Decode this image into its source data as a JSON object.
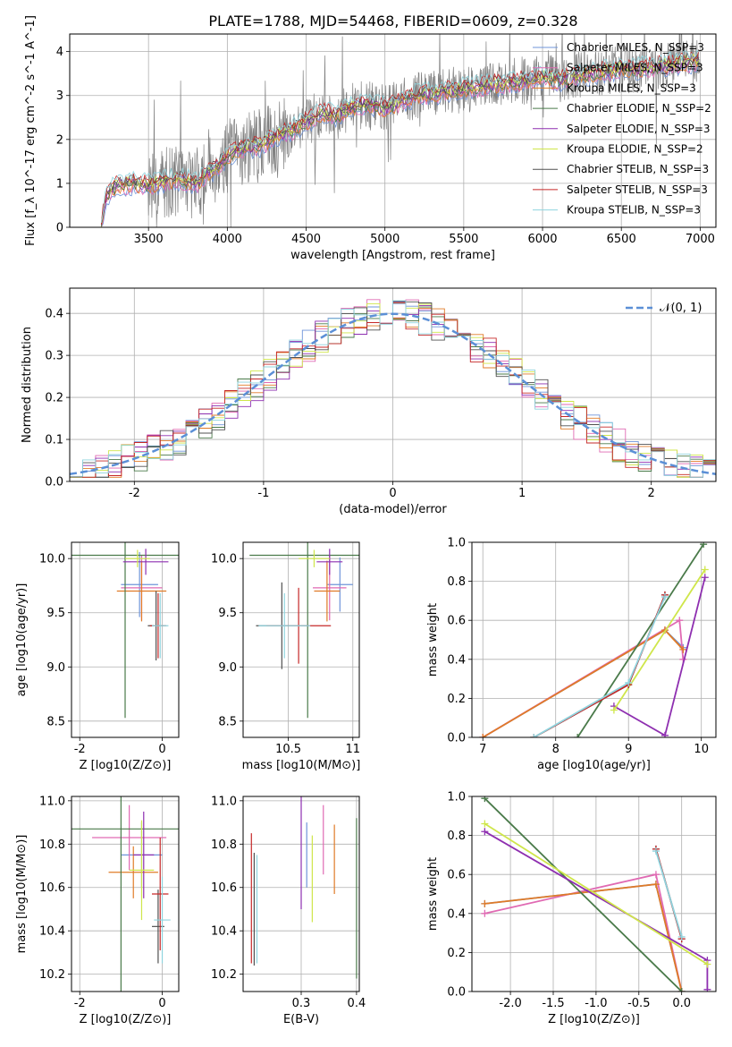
{
  "figure_title": "PLATE=1788, MJD=54468, FIBERID=0609, z=0.328",
  "model_colors": [
    "#6f94d9",
    "#e06ab3",
    "#e07b27",
    "#4a7a4a",
    "#8e2fb0",
    "#cfe64a",
    "#505050",
    "#c62828",
    "#8fd4de"
  ],
  "spectrum_color": "#808080",
  "chart_data": [
    {
      "type": "line",
      "xlabel": "wavelength [Angstrom, rest frame]",
      "ylabel": "Flux [f_λ 10^-17 erg cm^-2 s^-1 A^-1]",
      "xlim": [
        3000,
        7100
      ],
      "ylim": [
        0,
        4.4
      ],
      "xticks": [
        3500,
        4000,
        4500,
        5000,
        5500,
        6000,
        6500,
        7000
      ],
      "yticks": [
        0,
        1,
        2,
        3,
        4
      ],
      "legend_placement": "top-right",
      "legend": [
        "Chabrier MILES, N_SSP=3",
        "Salpeter MILES, N_SSP=3",
        "Kroupa MILES, N_SSP=3",
        "Chabrier ELODIE, N_SSP=2",
        "Salpeter ELODIE, N_SSP=3",
        "Kroupa ELODIE, N_SSP=2",
        "Chabrier STELIB, N_SSP=3",
        "Salpeter STELIB, N_SSP=3",
        "Kroupa STELIB, N_SSP=3"
      ],
      "continuum": {
        "x": [
          3200,
          3230,
          3260,
          3300,
          3400,
          3500,
          3600,
          3700,
          3800,
          3900,
          4000,
          4100,
          4200,
          4300,
          4400,
          4500,
          4600,
          4700,
          4800,
          4900,
          5000,
          5100,
          5200,
          5300,
          5400,
          5500,
          5600,
          5700,
          5800,
          5900,
          6000,
          6100,
          6200,
          6300,
          6400,
          6500,
          6600,
          6700,
          6800,
          6900,
          7000
        ],
        "y": [
          0.0,
          0.7,
          0.85,
          0.95,
          1.0,
          0.95,
          1.05,
          1.1,
          1.0,
          1.3,
          1.6,
          1.8,
          1.85,
          2.05,
          2.2,
          2.4,
          2.6,
          2.55,
          2.75,
          2.8,
          2.7,
          2.85,
          3.0,
          3.05,
          3.1,
          3.15,
          3.2,
          3.25,
          3.3,
          3.35,
          3.4,
          3.35,
          3.45,
          3.5,
          3.55,
          3.6,
          3.6,
          3.65,
          3.7,
          3.75,
          3.8
        ]
      }
    },
    {
      "type": "line",
      "xlabel": "(data-model)/error",
      "ylabel": "Normed distribution",
      "xlim": [
        -2.5,
        2.5
      ],
      "ylim": [
        0,
        0.46
      ],
      "xticks": [
        -2,
        -1,
        0,
        1,
        2
      ],
      "yticks": [
        0.0,
        0.1,
        0.2,
        0.3,
        0.4
      ],
      "legend_placement": "top-right",
      "legend": [
        "𝒩(0, 1)"
      ],
      "reference": "N(0,1)",
      "bin_width": 0.1
    },
    {
      "type": "scatter",
      "xlabel": "Z [log10(Z/Z⊙)]",
      "ylabel": "age  [log10(age/yr)]",
      "xlim": [
        -2.2,
        0.4
      ],
      "ylim": [
        8.35,
        10.15
      ],
      "xticks": [
        -2,
        0
      ],
      "yticks": [
        8.5,
        9.0,
        9.5,
        10.0
      ],
      "points": [
        {
          "series": 0,
          "x": -0.55,
          "y": 9.76,
          "xerr": 0.45,
          "yerr": 0.3
        },
        {
          "series": 1,
          "x": -0.5,
          "y": 9.73,
          "xerr": 0.5,
          "yerr": 0.3
        },
        {
          "series": 2,
          "x": -0.5,
          "y": 9.7,
          "xerr": 0.6,
          "yerr": 0.28
        },
        {
          "series": 3,
          "x": -0.9,
          "y": 10.03,
          "xerr": 1.9,
          "yerr": 1.5
        },
        {
          "series": 4,
          "x": -0.4,
          "y": 9.97,
          "xerr": 0.55,
          "yerr": 0.12
        },
        {
          "series": 5,
          "x": -0.6,
          "y": 10.0,
          "xerr": 0.3,
          "yerr": 0.08
        },
        {
          "series": 6,
          "x": -0.15,
          "y": 9.38,
          "xerr": 0.2,
          "yerr": 0.32
        },
        {
          "series": 7,
          "x": -0.1,
          "y": 9.38,
          "xerr": 0.2,
          "yerr": 0.3
        },
        {
          "series": 8,
          "x": -0.05,
          "y": 9.38,
          "xerr": 0.2,
          "yerr": 0.3
        }
      ]
    },
    {
      "type": "scatter",
      "xlabel": "mass [log10(M/M⊙)]",
      "ylabel": "",
      "xlim": [
        10.15,
        11.05
      ],
      "ylim": [
        8.35,
        10.15
      ],
      "xticks": [
        10.5,
        11.0
      ],
      "yticks": [
        8.5,
        9.0,
        9.5,
        10.0
      ],
      "points": [
        {
          "series": 0,
          "x": 10.9,
          "y": 9.76,
          "xerr": 0.1,
          "yerr": 0.25
        },
        {
          "series": 1,
          "x": 10.82,
          "y": 9.73,
          "xerr": 0.13,
          "yerr": 0.3
        },
        {
          "series": 2,
          "x": 10.8,
          "y": 9.7,
          "xerr": 0.1,
          "yerr": 0.28
        },
        {
          "series": 3,
          "x": 10.65,
          "y": 10.03,
          "xerr": 0.45,
          "yerr": 1.5
        },
        {
          "series": 4,
          "x": 10.82,
          "y": 9.97,
          "xerr": 0.1,
          "yerr": 0.12
        },
        {
          "series": 5,
          "x": 10.7,
          "y": 10.0,
          "xerr": 0.12,
          "yerr": 0.08
        },
        {
          "series": 6,
          "x": 10.45,
          "y": 9.38,
          "xerr": 0.2,
          "yerr": 0.4
        },
        {
          "series": 7,
          "x": 10.58,
          "y": 9.38,
          "xerr": 0.25,
          "yerr": 0.35
        },
        {
          "series": 8,
          "x": 10.47,
          "y": 9.38,
          "xerr": 0.2,
          "yerr": 0.3
        }
      ]
    },
    {
      "type": "line",
      "xlabel": "age  [log10(age/yr)]",
      "ylabel": "mass weight",
      "xlim": [
        6.85,
        10.2
      ],
      "ylim": [
        0,
        1
      ],
      "xticks": [
        7,
        8,
        9,
        10
      ],
      "yticks": [
        0.0,
        0.2,
        0.4,
        0.6,
        0.8,
        1.0
      ],
      "series": [
        {
          "x": [
            7.0,
            9.5,
            9.75
          ],
          "y": [
            0.0,
            0.55,
            0.46
          ]
        },
        {
          "x": [
            7.0,
            9.7,
            9.75
          ],
          "y": [
            0.0,
            0.6,
            0.4
          ]
        },
        {
          "x": [
            7.0,
            9.5,
            9.75
          ],
          "y": [
            0.0,
            0.55,
            0.45
          ]
        },
        {
          "x": [
            8.3,
            10.03
          ],
          "y": [
            0.0,
            0.99
          ]
        },
        {
          "x": [
            8.8,
            9.5,
            10.05
          ],
          "y": [
            0.16,
            0.01,
            0.82
          ]
        },
        {
          "x": [
            8.8,
            10.05
          ],
          "y": [
            0.14,
            0.86
          ]
        },
        {
          "x": [
            7.7,
            9.0,
            9.5
          ],
          "y": [
            0.0,
            0.27,
            0.73
          ]
        },
        {
          "x": [
            7.7,
            9.0,
            9.5
          ],
          "y": [
            0.0,
            0.27,
            0.73
          ]
        },
        {
          "x": [
            7.7,
            9.0,
            9.5
          ],
          "y": [
            0.0,
            0.28,
            0.72
          ]
        }
      ]
    },
    {
      "type": "scatter",
      "xlabel": "Z [log10(Z/Z⊙)]",
      "ylabel": "mass [log10(M/M⊙)]",
      "xlim": [
        -2.2,
        0.4
      ],
      "ylim": [
        10.12,
        11.02
      ],
      "xticks": [
        -2,
        0
      ],
      "yticks": [
        10.2,
        10.4,
        10.6,
        10.8,
        11.0
      ],
      "points": [
        {
          "series": 0,
          "x": -0.5,
          "y": 10.75,
          "xerr": 0.5,
          "yerr": 0.15
        },
        {
          "series": 1,
          "x": -0.8,
          "y": 10.83,
          "xerr": 0.9,
          "yerr": 0.15
        },
        {
          "series": 2,
          "x": -0.7,
          "y": 10.67,
          "xerr": 0.6,
          "yerr": 0.12
        },
        {
          "series": 3,
          "x": -1.0,
          "y": 10.87,
          "xerr": 1.7,
          "yerr": 0.75
        },
        {
          "series": 4,
          "x": -0.45,
          "y": 10.75,
          "xerr": 0.25,
          "yerr": 0.2
        },
        {
          "series": 5,
          "x": -0.5,
          "y": 10.68,
          "xerr": 0.3,
          "yerr": 0.23
        },
        {
          "series": 6,
          "x": -0.1,
          "y": 10.42,
          "xerr": 0.15,
          "yerr": 0.17
        },
        {
          "series": 7,
          "x": -0.05,
          "y": 10.57,
          "xerr": 0.2,
          "yerr": 0.26
        },
        {
          "series": 8,
          "x": 0.0,
          "y": 10.45,
          "xerr": 0.2,
          "yerr": 0.2
        }
      ]
    },
    {
      "type": "scatter",
      "xlabel": "E(B-V)",
      "ylabel": "",
      "xlim": [
        0.195,
        0.405
      ],
      "ylim": [
        10.12,
        11.02
      ],
      "xticks": [
        0.3,
        0.4
      ],
      "yticks": [
        10.2,
        10.4,
        10.6,
        10.8,
        11.0
      ],
      "points": [
        {
          "series": 0,
          "x": 0.31,
          "y": 10.75,
          "yerr": 0.15
        },
        {
          "series": 1,
          "x": 0.34,
          "y": 10.82,
          "yerr": 0.16
        },
        {
          "series": 2,
          "x": 0.36,
          "y": 10.73,
          "yerr": 0.16
        },
        {
          "series": 3,
          "x": 0.4,
          "y": 10.55,
          "yerr": 0.37
        },
        {
          "series": 4,
          "x": 0.3,
          "y": 10.78,
          "yerr": 0.28
        },
        {
          "series": 5,
          "x": 0.32,
          "y": 10.64,
          "yerr": 0.2
        },
        {
          "series": 6,
          "x": 0.215,
          "y": 10.5,
          "yerr": 0.26
        },
        {
          "series": 7,
          "x": 0.21,
          "y": 10.55,
          "yerr": 0.3
        },
        {
          "series": 8,
          "x": 0.22,
          "y": 10.5,
          "yerr": 0.25
        }
      ]
    },
    {
      "type": "line",
      "xlabel": "Z [log10(Z/Z⊙)]",
      "ylabel": "mass weight",
      "xlim": [
        -2.45,
        0.4
      ],
      "ylim": [
        0,
        1
      ],
      "xticks": [
        -2.0,
        -1.5,
        -1.0,
        -0.5,
        0.0
      ],
      "yticks": [
        0.0,
        0.2,
        0.4,
        0.6,
        0.8,
        1.0
      ],
      "series": [
        {
          "x": [
            -2.3,
            -0.3,
            0.0
          ],
          "y": [
            0.45,
            0.55,
            0.0
          ]
        },
        {
          "x": [
            -2.3,
            -0.3,
            0.0
          ],
          "y": [
            0.4,
            0.6,
            0.0
          ]
        },
        {
          "x": [
            -2.3,
            -0.3,
            0.0
          ],
          "y": [
            0.45,
            0.55,
            0.0
          ]
        },
        {
          "x": [
            -2.3,
            0.0
          ],
          "y": [
            0.99,
            0.0
          ]
        },
        {
          "x": [
            -2.3,
            0.3,
            0.3
          ],
          "y": [
            0.82,
            0.16,
            0.01
          ]
        },
        {
          "x": [
            -2.3,
            0.3
          ],
          "y": [
            0.86,
            0.14
          ]
        },
        {
          "x": [
            -0.3,
            0.0
          ],
          "y": [
            0.73,
            0.27
          ]
        },
        {
          "x": [
            -0.3,
            0.0
          ],
          "y": [
            0.73,
            0.27
          ]
        },
        {
          "x": [
            -0.3,
            0.0
          ],
          "y": [
            0.72,
            0.28
          ]
        }
      ]
    }
  ]
}
